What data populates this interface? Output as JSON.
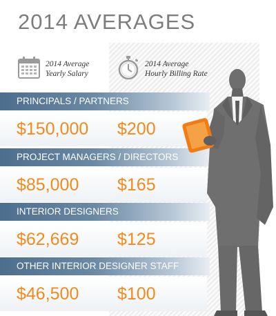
{
  "title": "2014 AVERAGES",
  "header": {
    "salary": {
      "line1": "2014 Average",
      "line2": "Yearly Salary",
      "icon": "calendar-icon"
    },
    "rate": {
      "line1": "2014 Average",
      "line2": "Hourly Billing Rate",
      "icon": "stopwatch-icon"
    }
  },
  "rows": [
    {
      "label": "PRINCIPALS / PARTNERS",
      "salary": "$150,000",
      "rate": "$200"
    },
    {
      "label": "PROJECT MANAGERS / DIRECTORS",
      "salary": "$85,000",
      "rate": "$165"
    },
    {
      "label": "INTERIOR DESIGNERS",
      "salary": "$62,669",
      "rate": "$125"
    },
    {
      "label": "OTHER INTERIOR DESIGNER STAFF",
      "salary": "$46,500",
      "rate": "$100"
    }
  ],
  "colors": {
    "accent": "#f28a1e",
    "band": "#4c6e8d",
    "silhouette": "#6e6e6e",
    "title": "#7d7d7d"
  }
}
